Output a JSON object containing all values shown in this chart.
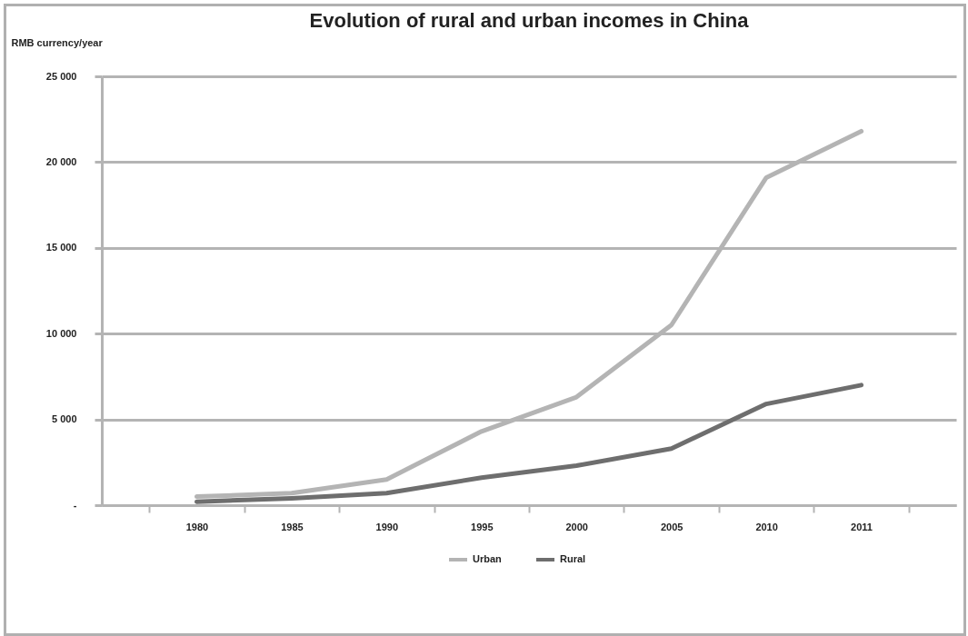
{
  "chart_data": {
    "type": "line",
    "title": "Evolution of rural and urban incomes in China",
    "ylabel": "RMB currency/year",
    "categories": [
      "1980",
      "1985",
      "1990",
      "1995",
      "2000",
      "2005",
      "2010",
      "2011"
    ],
    "series": [
      {
        "name": "Urban",
        "color": "#b4b4b4",
        "values": [
          500,
          700,
          1500,
          4300,
          6300,
          10500,
          19100,
          21800
        ]
      },
      {
        "name": "Rural",
        "color": "#6e6e6e",
        "values": [
          200,
          400,
          700,
          1600,
          2300,
          3300,
          5900,
          7000
        ]
      }
    ],
    "ylim": [
      0,
      25000
    ],
    "yticks": [
      {
        "value": 0,
        "label": "-"
      },
      {
        "value": 5000,
        "label": "5 000"
      },
      {
        "value": 10000,
        "label": "10 000"
      },
      {
        "value": 15000,
        "label": "15 000"
      },
      {
        "value": 20000,
        "label": "20 000"
      },
      {
        "value": 25000,
        "label": "25 000"
      }
    ],
    "grid": "y",
    "legend": "bottom",
    "marker": "none",
    "line_style": "solid"
  }
}
